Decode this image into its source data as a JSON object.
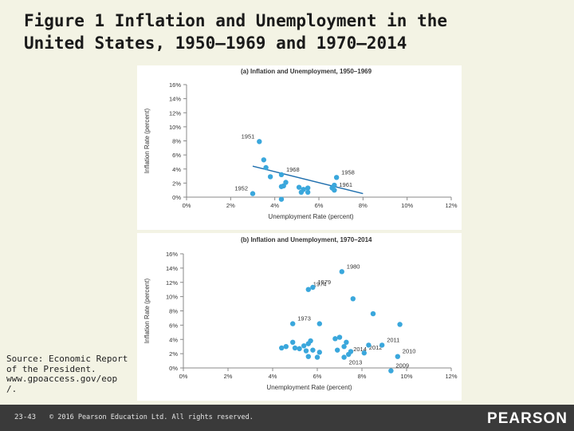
{
  "slide": {
    "title_line1": "Figure 1 Inflation and Unemployment in the",
    "title_line2": "United States, 1950–1969 and 1970–2014",
    "source_lines": [
      "Source: Economic Report",
      "of the President.",
      "www.gpoaccess.gov/eop",
      "/."
    ],
    "page_number": "23-43",
    "copyright": "© 2016 Pearson Education Ltd. All rights reserved.",
    "logo": "PEARSON"
  },
  "colors": {
    "point": "#3aa7dc",
    "trend": "#1f6fae",
    "axis": "#888888",
    "background": "#f3f3e4",
    "footer": "#3a3a3a"
  },
  "chart_data": [
    {
      "type": "scatter",
      "title": "(a) Inflation and Unemployment, 1950–1969",
      "xlabel": "Unemployment Rate (percent)",
      "ylabel": "Inflation Rate (percent)",
      "xlim": [
        0,
        12
      ],
      "ylim": [
        0,
        16
      ],
      "x_ticks": [
        "0%",
        "2%",
        "4%",
        "6%",
        "8%",
        "10%",
        "12%"
      ],
      "y_ticks": [
        "0%",
        "2%",
        "4%",
        "6%",
        "8%",
        "10%",
        "12%",
        "14%",
        "16%"
      ],
      "trend_line": {
        "x": [
          3.0,
          8.0
        ],
        "y": [
          4.4,
          0.5
        ]
      },
      "points": [
        {
          "x": 3.3,
          "y": 7.9,
          "label": "1951"
        },
        {
          "x": 3.5,
          "y": 5.3
        },
        {
          "x": 3.6,
          "y": 4.2
        },
        {
          "x": 3.0,
          "y": 0.5,
          "label": "1952"
        },
        {
          "x": 3.8,
          "y": 2.9
        },
        {
          "x": 4.3,
          "y": 3.2,
          "label": "1968"
        },
        {
          "x": 4.5,
          "y": 2.1
        },
        {
          "x": 4.4,
          "y": 1.6
        },
        {
          "x": 4.3,
          "y": 1.5
        },
        {
          "x": 4.3,
          "y": -0.3
        },
        {
          "x": 5.1,
          "y": 1.4
        },
        {
          "x": 5.2,
          "y": 0.7
        },
        {
          "x": 5.5,
          "y": 1.3
        },
        {
          "x": 5.3,
          "y": 1.1
        },
        {
          "x": 5.5,
          "y": 0.7
        },
        {
          "x": 6.6,
          "y": 1.3
        },
        {
          "x": 6.7,
          "y": 1.7
        },
        {
          "x": 6.7,
          "y": 1.0,
          "label": "1961"
        },
        {
          "x": 6.8,
          "y": 2.8,
          "label": "1958"
        }
      ]
    },
    {
      "type": "scatter",
      "title": "(b) Inflation and Unemployment, 1970–2014",
      "xlabel": "Unemployment Rate (percent)",
      "ylabel": "Inflation Rate (percent)",
      "xlim": [
        0,
        12
      ],
      "ylim": [
        0,
        16
      ],
      "x_ticks": [
        "0%",
        "2%",
        "4%",
        "6%",
        "8%",
        "10%",
        "12%"
      ],
      "y_ticks": [
        "0%",
        "2%",
        "4%",
        "6%",
        "8%",
        "10%",
        "12%",
        "14%",
        "16%"
      ],
      "points": [
        {
          "x": 7.1,
          "y": 13.5,
          "label": "1980"
        },
        {
          "x": 5.6,
          "y": 11.0,
          "label": "1974"
        },
        {
          "x": 5.8,
          "y": 11.3,
          "label": "1979"
        },
        {
          "x": 8.5,
          "y": 7.6
        },
        {
          "x": 7.6,
          "y": 9.7
        },
        {
          "x": 6.1,
          "y": 6.2
        },
        {
          "x": 4.9,
          "y": 6.2,
          "label": "1973"
        },
        {
          "x": 4.4,
          "y": 2.8
        },
        {
          "x": 4.6,
          "y": 3.0
        },
        {
          "x": 4.9,
          "y": 3.6
        },
        {
          "x": 5.0,
          "y": 2.8
        },
        {
          "x": 5.2,
          "y": 2.7
        },
        {
          "x": 5.4,
          "y": 3.1
        },
        {
          "x": 5.5,
          "y": 2.4
        },
        {
          "x": 5.6,
          "y": 3.4
        },
        {
          "x": 5.6,
          "y": 1.6
        },
        {
          "x": 5.8,
          "y": 2.5
        },
        {
          "x": 6.1,
          "y": 2.2
        },
        {
          "x": 6.9,
          "y": 2.5
        },
        {
          "x": 7.0,
          "y": 4.3
        },
        {
          "x": 7.2,
          "y": 3.0
        },
        {
          "x": 7.3,
          "y": 3.6
        },
        {
          "x": 7.5,
          "y": 2.3
        },
        {
          "x": 7.4,
          "y": 1.9,
          "label": "2014"
        },
        {
          "x": 7.2,
          "y": 1.5,
          "label": "2013"
        },
        {
          "x": 8.1,
          "y": 2.1,
          "label": "2012"
        },
        {
          "x": 8.3,
          "y": 3.2
        },
        {
          "x": 8.9,
          "y": 3.2,
          "label": "2011"
        },
        {
          "x": 9.6,
          "y": 1.6,
          "label": "2010"
        },
        {
          "x": 9.7,
          "y": 6.1
        },
        {
          "x": 9.3,
          "y": -0.4,
          "label": "2009"
        },
        {
          "x": 5.7,
          "y": 3.8
        },
        {
          "x": 6.8,
          "y": 4.1
        },
        {
          "x": 6.0,
          "y": 1.5
        }
      ]
    }
  ]
}
